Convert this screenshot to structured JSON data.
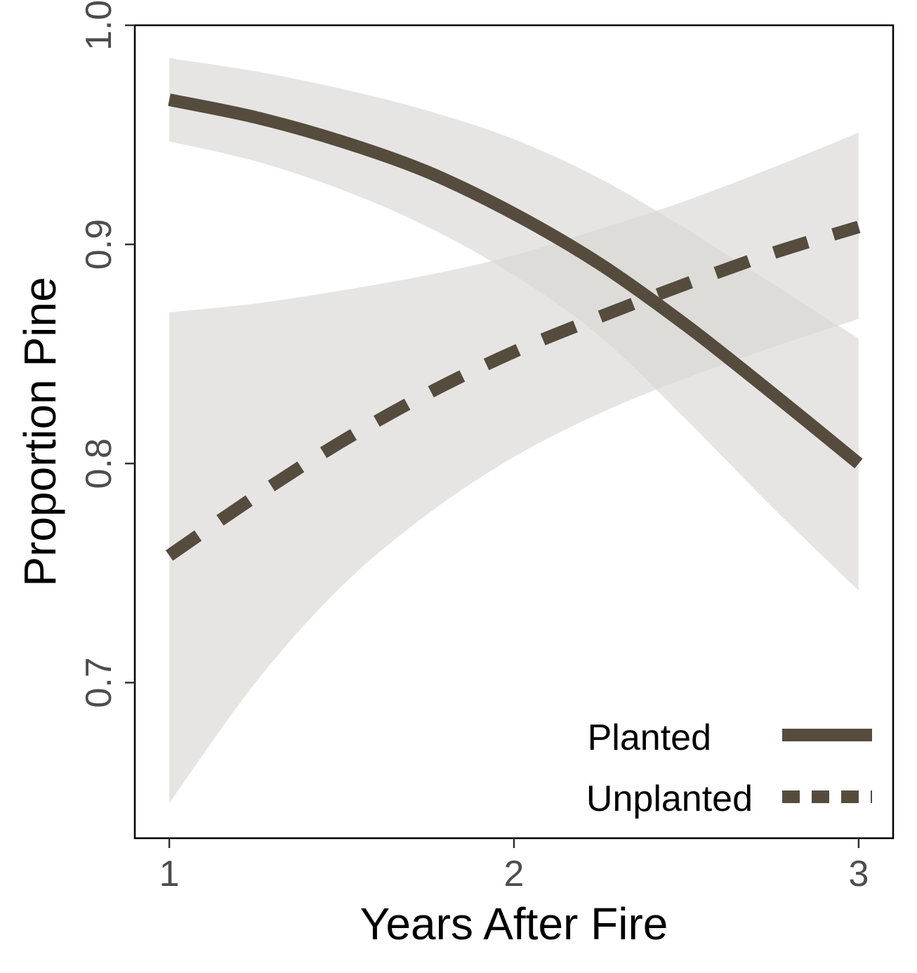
{
  "chart_data": {
    "type": "line",
    "xlabel": "Years After Fire",
    "ylabel": "Proportion Pine",
    "xlim": [
      0.9,
      3.1
    ],
    "ylim": [
      0.629,
      1.0
    ],
    "x_ticks": [
      "1",
      "2",
      "3"
    ],
    "x_tick_values": [
      1,
      2,
      3
    ],
    "y_ticks": [
      "0.7",
      "0.8",
      "0.9",
      "1.0"
    ],
    "y_tick_values": [
      0.7,
      0.8,
      0.9,
      1.0
    ],
    "grid": false,
    "legend_position": "bottom-right",
    "series": [
      {
        "name": "Planted",
        "line_style": "solid",
        "color": "#554c3e",
        "ribbon_color": "#d9d7d4",
        "x": [
          1,
          1.25,
          1.5,
          1.75,
          2,
          2.25,
          2.5,
          2.75,
          3
        ],
        "y": [
          0.966,
          0.958,
          0.947,
          0.933,
          0.914,
          0.891,
          0.863,
          0.832,
          0.8
        ],
        "lower": [
          0.947,
          0.938,
          0.925,
          0.908,
          0.886,
          0.858,
          0.82,
          0.78,
          0.742
        ],
        "upper": [
          0.985,
          0.979,
          0.971,
          0.961,
          0.948,
          0.93,
          0.907,
          0.882,
          0.857
        ]
      },
      {
        "name": "Unplanted",
        "line_style": "dashed",
        "color": "#554c3e",
        "ribbon_color": "#d9d7d4",
        "x": [
          1,
          1.25,
          1.5,
          1.75,
          2,
          2.25,
          2.5,
          2.75,
          3
        ],
        "y": [
          0.758,
          0.785,
          0.81,
          0.832,
          0.851,
          0.867,
          0.882,
          0.896,
          0.908
        ],
        "lower": [
          0.645,
          0.7,
          0.744,
          0.777,
          0.803,
          0.823,
          0.839,
          0.853,
          0.866
        ],
        "upper": [
          0.869,
          0.873,
          0.879,
          0.886,
          0.895,
          0.907,
          0.92,
          0.935,
          0.951
        ]
      }
    ]
  }
}
